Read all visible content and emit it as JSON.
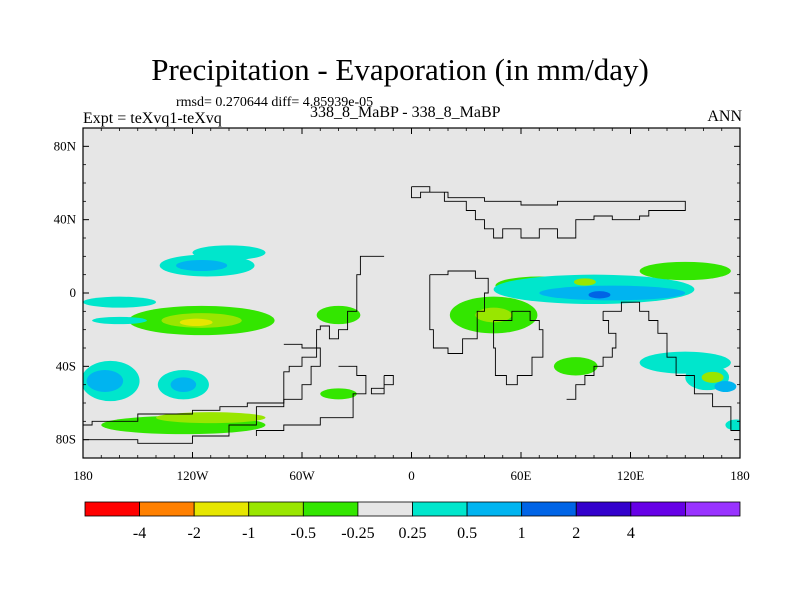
{
  "chart_data": {
    "type": "heatmap",
    "title": "Precipitation - Evaporation (in mm/day)",
    "stats_text": "rmsd= 0.270644 diff= 4.85939e-05",
    "left_label": "Expt = teXvq1-teXvq",
    "center_label": "338_8_MaBP - 338_8_MaBP",
    "right_label": "ANN",
    "xlim": [
      -180,
      180
    ],
    "ylim": [
      -90,
      90
    ],
    "x_ticks": [
      {
        "value": -180,
        "label": "180"
      },
      {
        "value": -120,
        "label": "120W"
      },
      {
        "value": -60,
        "label": "60W"
      },
      {
        "value": 0,
        "label": "0"
      },
      {
        "value": 60,
        "label": "60E"
      },
      {
        "value": 120,
        "label": "120E"
      },
      {
        "value": 180,
        "label": "180"
      }
    ],
    "y_ticks": [
      {
        "value": 80,
        "label": "80N"
      },
      {
        "value": 40,
        "label": "40N"
      },
      {
        "value": 0,
        "label": "0"
      },
      {
        "value": -40,
        "label": "40S"
      },
      {
        "value": -80,
        "label": "80S"
      }
    ],
    "background_color": "#e6e6e6",
    "levels": [
      {
        "label": "-4",
        "color": "#ff0000"
      },
      {
        "label": "-2",
        "color": "#ff8000"
      },
      {
        "label": "-1",
        "color": "#e6e600"
      },
      {
        "label": "-0.5",
        "color": "#99e600"
      },
      {
        "label": "-0.25",
        "color": "#33e600"
      },
      {
        "label": "0.25",
        "color": "#e6e6e6"
      },
      {
        "label": "0.5",
        "color": "#00e6cc"
      },
      {
        "label": "1",
        "color": "#00b4f0"
      },
      {
        "label": "2",
        "color": "#0064e6"
      },
      {
        "label": "4",
        "color": "#3300cc"
      },
      {
        "label": "",
        "color": "#6600e6"
      },
      {
        "label": "",
        "color": "#9933ff"
      }
    ],
    "anomaly_regions": [
      {
        "lon": -112,
        "lat": 15,
        "rlon": 26,
        "rlat": 6,
        "level": 6
      },
      {
        "lon": -115,
        "lat": 15,
        "rlon": 14,
        "rlat": 3,
        "level": 7
      },
      {
        "lon": -100,
        "lat": 22,
        "rlon": 20,
        "rlat": 4,
        "level": 6
      },
      {
        "lon": -160,
        "lat": -5,
        "rlon": 20,
        "rlat": 3,
        "level": 6
      },
      {
        "lon": -115,
        "lat": -15,
        "rlon": 40,
        "rlat": 8,
        "level": 4
      },
      {
        "lon": -115,
        "lat": -15,
        "rlon": 22,
        "rlat": 4,
        "level": 3
      },
      {
        "lon": -118,
        "lat": -16,
        "rlon": 9,
        "rlat": 2,
        "level": 2
      },
      {
        "lon": -160,
        "lat": -15,
        "rlon": 15,
        "rlat": 2,
        "level": 6
      },
      {
        "lon": -165,
        "lat": -48,
        "rlon": 16,
        "rlat": 11,
        "level": 6
      },
      {
        "lon": -168,
        "lat": -48,
        "rlon": 10,
        "rlat": 6,
        "level": 7
      },
      {
        "lon": -125,
        "lat": -50,
        "rlon": 14,
        "rlat": 8,
        "level": 6
      },
      {
        "lon": -125,
        "lat": -50,
        "rlon": 7,
        "rlat": 4,
        "level": 7
      },
      {
        "lon": -125,
        "lat": -72,
        "rlon": 45,
        "rlat": 5,
        "level": 4
      },
      {
        "lon": -110,
        "lat": -68,
        "rlon": 30,
        "rlat": 3,
        "level": 3
      },
      {
        "lon": -40,
        "lat": -12,
        "rlon": 12,
        "rlat": 5,
        "level": 4
      },
      {
        "lon": -40,
        "lat": -55,
        "rlon": 10,
        "rlat": 3,
        "level": 4
      },
      {
        "lon": 45,
        "lat": -12,
        "rlon": 24,
        "rlat": 10,
        "level": 4
      },
      {
        "lon": 45,
        "lat": -12,
        "rlon": 10,
        "rlat": 4,
        "level": 3
      },
      {
        "lon": 70,
        "lat": 4,
        "rlon": 24,
        "rlat": 5,
        "level": 4
      },
      {
        "lon": 100,
        "lat": 2,
        "rlon": 55,
        "rlat": 8,
        "level": 6
      },
      {
        "lon": 110,
        "lat": 0,
        "rlon": 40,
        "rlat": 4,
        "level": 7
      },
      {
        "lon": 103,
        "lat": -1,
        "rlon": 6,
        "rlat": 2,
        "level": 8
      },
      {
        "lon": 95,
        "lat": 6,
        "rlon": 6,
        "rlat": 2,
        "level": 3
      },
      {
        "lon": 150,
        "lat": 12,
        "rlon": 25,
        "rlat": 5,
        "level": 4
      },
      {
        "lon": 90,
        "lat": -40,
        "rlon": 12,
        "rlat": 5,
        "level": 4
      },
      {
        "lon": 150,
        "lat": -38,
        "rlon": 25,
        "rlat": 6,
        "level": 6
      },
      {
        "lon": 162,
        "lat": -46,
        "rlon": 12,
        "rlat": 7,
        "level": 6
      },
      {
        "lon": 165,
        "lat": -46,
        "rlon": 6,
        "rlat": 3,
        "level": 3
      },
      {
        "lon": 172,
        "lat": -51,
        "rlon": 6,
        "rlat": 3,
        "level": 7
      },
      {
        "lon": 178,
        "lat": -72,
        "rlon": 6,
        "rlat": 3,
        "level": 6
      }
    ],
    "coastlines": [
      [
        [
          -15,
          20
        ],
        [
          -25,
          20
        ],
        [
          -28,
          10
        ],
        [
          -30,
          -10
        ],
        [
          -35,
          -20
        ],
        [
          -40,
          -25
        ],
        [
          -45,
          -18
        ],
        [
          -50,
          -20
        ],
        [
          -52,
          -35
        ],
        [
          -60,
          -40
        ],
        [
          -67,
          -43
        ],
        [
          -70,
          -60
        ],
        [
          -90,
          -62
        ],
        [
          -105,
          -64
        ],
        [
          -120,
          -66
        ],
        [
          -150,
          -70
        ],
        [
          -175,
          -72
        ],
        [
          -180,
          -74
        ]
      ],
      [
        [
          0,
          58
        ],
        [
          5,
          58
        ],
        [
          10,
          55
        ],
        [
          18,
          50
        ],
        [
          30,
          45
        ],
        [
          35,
          40
        ],
        [
          40,
          35
        ],
        [
          45,
          30
        ],
        [
          50,
          35
        ],
        [
          60,
          30
        ],
        [
          70,
          35
        ],
        [
          80,
          30
        ],
        [
          90,
          40
        ],
        [
          100,
          42
        ],
        [
          110,
          40
        ],
        [
          125,
          42
        ],
        [
          130,
          45
        ],
        [
          140,
          45
        ],
        [
          150,
          45
        ],
        [
          150,
          50
        ],
        [
          130,
          50
        ],
        [
          100,
          50
        ],
        [
          80,
          48
        ],
        [
          60,
          50
        ],
        [
          40,
          52
        ],
        [
          20,
          55
        ],
        [
          5,
          52
        ],
        [
          0,
          58
        ]
      ],
      [
        [
          10,
          10
        ],
        [
          20,
          12
        ],
        [
          35,
          8
        ],
        [
          42,
          0
        ],
        [
          40,
          -10
        ],
        [
          36,
          -25
        ],
        [
          28,
          -33
        ],
        [
          20,
          -30
        ],
        [
          12,
          -20
        ],
        [
          10,
          -5
        ],
        [
          10,
          10
        ]
      ],
      [
        [
          45,
          -15
        ],
        [
          55,
          -10
        ],
        [
          65,
          -15
        ],
        [
          70,
          -20
        ],
        [
          72,
          -35
        ],
        [
          66,
          -45
        ],
        [
          58,
          -50
        ],
        [
          52,
          -45
        ],
        [
          46,
          -30
        ],
        [
          45,
          -15
        ]
      ],
      [
        [
          105,
          -10
        ],
        [
          115,
          -5
        ],
        [
          125,
          -10
        ],
        [
          130,
          -15
        ],
        [
          135,
          -22
        ],
        [
          140,
          -35
        ],
        [
          145,
          -45
        ],
        [
          155,
          -55
        ],
        [
          165,
          -62
        ],
        [
          175,
          -75
        ],
        [
          180,
          -78
        ]
      ],
      [
        [
          85,
          -58
        ],
        [
          90,
          -50
        ],
        [
          95,
          -45
        ],
        [
          100,
          -40
        ],
        [
          105,
          -35
        ],
        [
          110,
          -30
        ],
        [
          112,
          -22
        ],
        [
          108,
          -15
        ],
        [
          105,
          -10
        ]
      ],
      [
        [
          -70,
          -28
        ],
        [
          -60,
          -30
        ],
        [
          -50,
          -40
        ],
        [
          -55,
          -50
        ],
        [
          -60,
          -58
        ],
        [
          -70,
          -62
        ],
        [
          -85,
          -72
        ],
        [
          -100,
          -78
        ],
        [
          -120,
          -82
        ],
        [
          -150,
          -80
        ],
        [
          -180,
          -82
        ]
      ],
      [
        [
          -40,
          -40
        ],
        [
          -30,
          -45
        ],
        [
          -25,
          -55
        ],
        [
          -32,
          -68
        ],
        [
          -50,
          -72
        ],
        [
          -70,
          -75
        ],
        [
          -85,
          -78
        ]
      ],
      [
        [
          -15,
          -45
        ],
        [
          -10,
          -50
        ],
        [
          -15,
          -55
        ],
        [
          -22,
          -52
        ],
        [
          -15,
          -45
        ]
      ]
    ]
  }
}
